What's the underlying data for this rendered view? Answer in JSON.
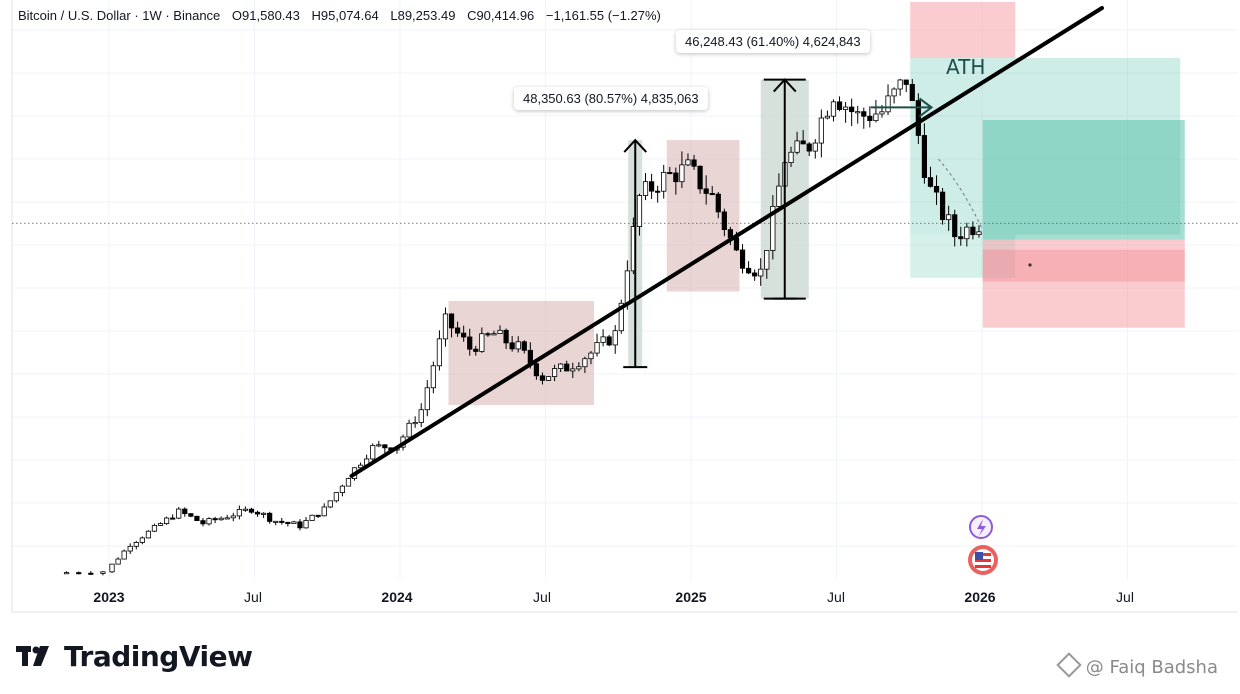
{
  "legend": {
    "symbol": "Bitcoin / U.S. Dollar · 1W · Binance",
    "open": "O91,580.43",
    "high": "H95,074.64",
    "low": "L89,253.49",
    "close": "C90,414.96",
    "change": "−1,161.55 (−1.27%)"
  },
  "callouts": {
    "first_move": "48,350.63 (80.57%) 4,835,063",
    "second_move": "46,248.43 (61.40%) 4,624,843",
    "ath": "ATH"
  },
  "branding": {
    "logo_text": "TradingView",
    "watermark": "@ Faiq Badsha"
  },
  "colors": {
    "up": "#ffffff",
    "down": "#000000",
    "range_box": "#d9b3b3",
    "measure_box": "#c5d4cc",
    "profit_zone": "#5cc3ad",
    "stop_zone": "#f59aa2"
  },
  "chart_data": {
    "type": "candlestick",
    "instrument": "Bitcoin / U.S. Dollar",
    "timeframe": "1W",
    "exchange": "Binance",
    "x_ticks": [
      {
        "label": "2023",
        "date": "2023-01",
        "bold": true
      },
      {
        "label": "Jul",
        "date": "2023-07",
        "bold": false
      },
      {
        "label": "2024",
        "date": "2024-01",
        "bold": true
      },
      {
        "label": "Jul",
        "date": "2024-07",
        "bold": false
      },
      {
        "label": "2025",
        "date": "2025-01",
        "bold": true
      },
      {
        "label": "Jul",
        "date": "2025-07",
        "bold": false
      },
      {
        "label": "2026",
        "date": "2026-01",
        "bold": true
      },
      {
        "label": "Jul",
        "date": "2026-07",
        "bold": false
      }
    ],
    "ylim": [
      15000,
      115000
    ],
    "last_close": 90414.96,
    "weekly_close_path": [
      [
        "2022-11",
        16500
      ],
      [
        "2023-01",
        16800
      ],
      [
        "2023-02",
        22500
      ],
      [
        "2023-03",
        26000
      ],
      [
        "2023-04",
        29500
      ],
      [
        "2023-05",
        27000
      ],
      [
        "2023-06",
        28500
      ],
      [
        "2023-07",
        30000
      ],
      [
        "2023-08",
        27500
      ],
      [
        "2023-09",
        26500
      ],
      [
        "2023-10",
        30000
      ],
      [
        "2023-11",
        37000
      ],
      [
        "2023-12",
        43000
      ],
      [
        "2024-01",
        43500
      ],
      [
        "2024-02",
        51000
      ],
      [
        "2024-03",
        70000
      ],
      [
        "2024-04",
        64000
      ],
      [
        "2024-05",
        67000
      ],
      [
        "2024-06",
        64000
      ],
      [
        "2024-07",
        58000
      ],
      [
        "2024-08",
        60000
      ],
      [
        "2024-09",
        63000
      ],
      [
        "2024-10",
        67000
      ],
      [
        "2024-11",
        96000
      ],
      [
        "2024-12",
        100000
      ],
      [
        "2025-01",
        102000
      ],
      [
        "2025-02",
        96000
      ],
      [
        "2025-03",
        84000
      ],
      [
        "2025-04",
        80000
      ],
      [
        "2025-05",
        104000
      ],
      [
        "2025-06",
        107000
      ],
      [
        "2025-07",
        118000
      ],
      [
        "2025-08",
        113000
      ],
      [
        "2025-09",
        114000
      ],
      [
        "2025-10",
        121000
      ],
      [
        "2025-11",
        97000
      ],
      [
        "2025-12",
        88000
      ],
      [
        "2026-01",
        90415
      ]
    ],
    "annotations": [
      {
        "type": "trendline",
        "from": [
          "2023-11",
          37000
        ],
        "to": [
          "2026-01",
          125000
        ]
      },
      {
        "type": "range_box",
        "from": "2024-03",
        "to": "2024-09",
        "price_range": [
          52000,
          74000
        ]
      },
      {
        "type": "range_box",
        "from": "2024-12",
        "to": "2025-03",
        "price_range": [
          76000,
          108000
        ]
      },
      {
        "type": "measure",
        "label": "48,350.63 (80.57%) 4,835,063",
        "from": [
          "2024-10",
          60000
        ],
        "to": [
          "2024-11",
          108000
        ]
      },
      {
        "type": "measure",
        "label": "46,248.43 (61.40%) 4,624,843",
        "from": [
          "2025-04",
          74500
        ],
        "to": [
          "2025-05",
          120800
        ]
      },
      {
        "type": "horizontal_arrow",
        "label": "ATH",
        "price": 124000,
        "from": "2025-08",
        "to": "2025-11"
      },
      {
        "type": "trade_zones",
        "profit_price_range": [
          88000,
          125000
        ],
        "stop_price_range": [
          80000,
          88000
        ]
      },
      {
        "type": "horizontal_dotted_line",
        "price": 90415
      }
    ]
  }
}
